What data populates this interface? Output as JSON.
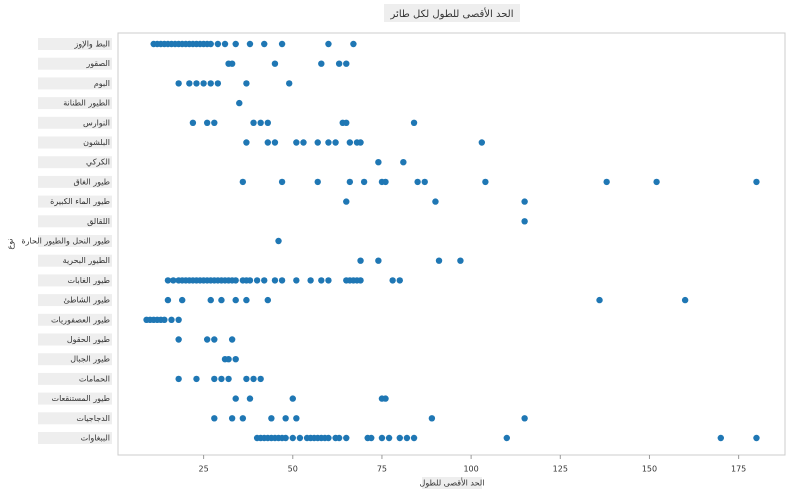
{
  "chart_data": {
    "type": "strip",
    "title": "الحد الأقصى للطول لكل طائر",
    "xlabel": "الحد الأقصى للطول",
    "ylabel": "نوع",
    "categories": [
      "البط والإوز",
      "الصقور",
      "البوم",
      "الطيور الطنانة",
      "النوارس",
      "البلشون",
      "الكركي",
      "طيور الغاق",
      "طيور الماء الكبيرة",
      "اللقالق",
      "طيور النحل والطيور الحارة",
      "الطيور البحرية",
      "طيور الغابات",
      "طيور الشاطئ",
      "طيور العصفوريات",
      "طيور الحقول",
      "طيور الجبال",
      "الحمامات",
      "طيور المستنقعات",
      "الدجاجيات",
      "الببغاوات"
    ],
    "values": [
      [
        11,
        12,
        13,
        14,
        15,
        16,
        17,
        18,
        19,
        20,
        21,
        22,
        23,
        24,
        25,
        26,
        27,
        29,
        31,
        34,
        38,
        42,
        47,
        60,
        67
      ],
      [
        32,
        33,
        45,
        58,
        63,
        65
      ],
      [
        18,
        21,
        23,
        25,
        27,
        29,
        37,
        49
      ],
      [
        35
      ],
      [
        22,
        26,
        28,
        39,
        41,
        43,
        64,
        65,
        84
      ],
      [
        37,
        43,
        45,
        51,
        53,
        57,
        60,
        62,
        66,
        68,
        69,
        103
      ],
      [
        74,
        81
      ],
      [
        36,
        47,
        57,
        66,
        70,
        75,
        76,
        85,
        87,
        104,
        138,
        152,
        180
      ],
      [
        65,
        90,
        115
      ],
      [
        115
      ],
      [
        46
      ],
      [
        69,
        74,
        91,
        97
      ],
      [
        15,
        16.5,
        18,
        19,
        20,
        21,
        22,
        23,
        24,
        25,
        26,
        27,
        28,
        29,
        30,
        31,
        32,
        33,
        34,
        36,
        37,
        38,
        40,
        42,
        45,
        47,
        51,
        55,
        58,
        60,
        65,
        66,
        67,
        68,
        69,
        78,
        80
      ],
      [
        15,
        19,
        27,
        30,
        34,
        37,
        43,
        136,
        160
      ],
      [
        9,
        10,
        11,
        12,
        13,
        14,
        16,
        18
      ],
      [
        18,
        26,
        28,
        33
      ],
      [
        31,
        32,
        34
      ],
      [
        18,
        23,
        28,
        30,
        32,
        37,
        39,
        41
      ],
      [
        34,
        38,
        50,
        75,
        76
      ],
      [
        28,
        33,
        36,
        44,
        48,
        51,
        89,
        115
      ],
      [
        40,
        41,
        42,
        43,
        44,
        45,
        46,
        47,
        48,
        50,
        52,
        54,
        55,
        56,
        57,
        58,
        59,
        60,
        62,
        63,
        65,
        71,
        72,
        75,
        77,
        80,
        82,
        84,
        110,
        170,
        180
      ]
    ],
    "color": "#1f77b4",
    "xlim": [
      1,
      188
    ],
    "xticks": [
      25,
      50,
      75,
      100,
      125,
      150,
      175
    ]
  }
}
